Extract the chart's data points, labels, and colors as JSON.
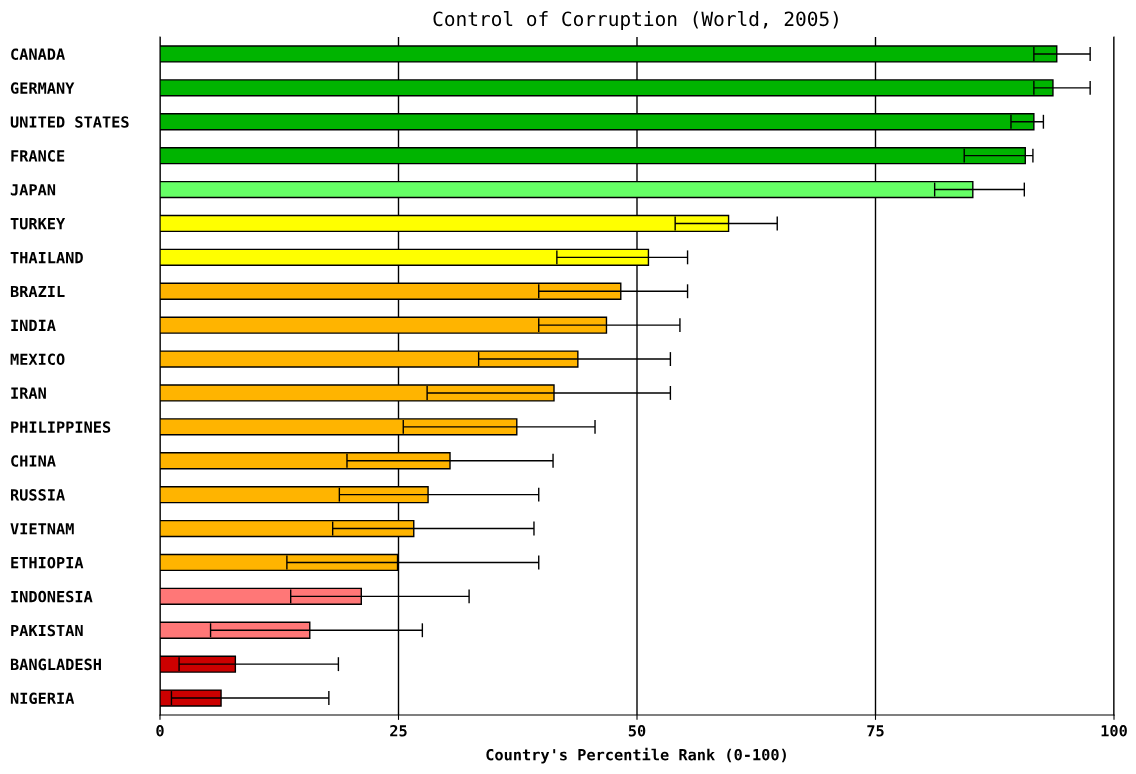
{
  "chart_data": {
    "type": "bar",
    "orientation": "horizontal",
    "title": "Control of Corruption (World, 2005)",
    "xlabel": "Country's Percentile Rank (0-100)",
    "categories": [
      "CANADA",
      "GERMANY",
      "UNITED STATES",
      "FRANCE",
      "JAPAN",
      "TURKEY",
      "THAILAND",
      "BRAZIL",
      "INDIA",
      "MEXICO",
      "IRAN",
      "PHILIPPINES",
      "CHINA",
      "RUSSIA",
      "VIETNAM",
      "ETHIOPIA",
      "INDONESIA",
      "PAKISTAN",
      "BANGLADESH",
      "NIGERIA"
    ],
    "values": [
      94.0,
      93.6,
      91.6,
      90.7,
      85.2,
      59.6,
      51.2,
      48.3,
      46.8,
      43.8,
      41.3,
      37.4,
      30.4,
      28.1,
      26.6,
      24.9,
      21.1,
      15.7,
      7.9,
      6.4
    ],
    "errors": [
      [
        91.6,
        97.5
      ],
      [
        91.6,
        97.5
      ],
      [
        89.2,
        92.6
      ],
      [
        84.3,
        91.5
      ],
      [
        81.2,
        90.6
      ],
      [
        54.0,
        64.7
      ],
      [
        41.6,
        55.3
      ],
      [
        39.7,
        55.3
      ],
      [
        39.7,
        54.5
      ],
      [
        33.4,
        53.5
      ],
      [
        28.0,
        53.5
      ],
      [
        25.5,
        45.6
      ],
      [
        19.6,
        41.2
      ],
      [
        18.8,
        39.7
      ],
      [
        18.1,
        39.2
      ],
      [
        13.3,
        39.7
      ],
      [
        13.7,
        32.4
      ],
      [
        5.3,
        27.5
      ],
      [
        2.0,
        18.7
      ],
      [
        1.2,
        17.7
      ]
    ],
    "colors": [
      "#00b400",
      "#00b400",
      "#00b400",
      "#00b400",
      "#66ff66",
      "#ffff00",
      "#ffff00",
      "#ffb400",
      "#ffb400",
      "#ffb400",
      "#ffb400",
      "#ffb400",
      "#ffb400",
      "#ffb400",
      "#ffb400",
      "#ffb400",
      "#ff7777",
      "#ff7777",
      "#cc0000",
      "#cc0000"
    ],
    "xlim": [
      0,
      100
    ],
    "xticks": [
      0,
      25,
      50,
      75,
      100
    ],
    "grid": "x",
    "legend": false
  }
}
